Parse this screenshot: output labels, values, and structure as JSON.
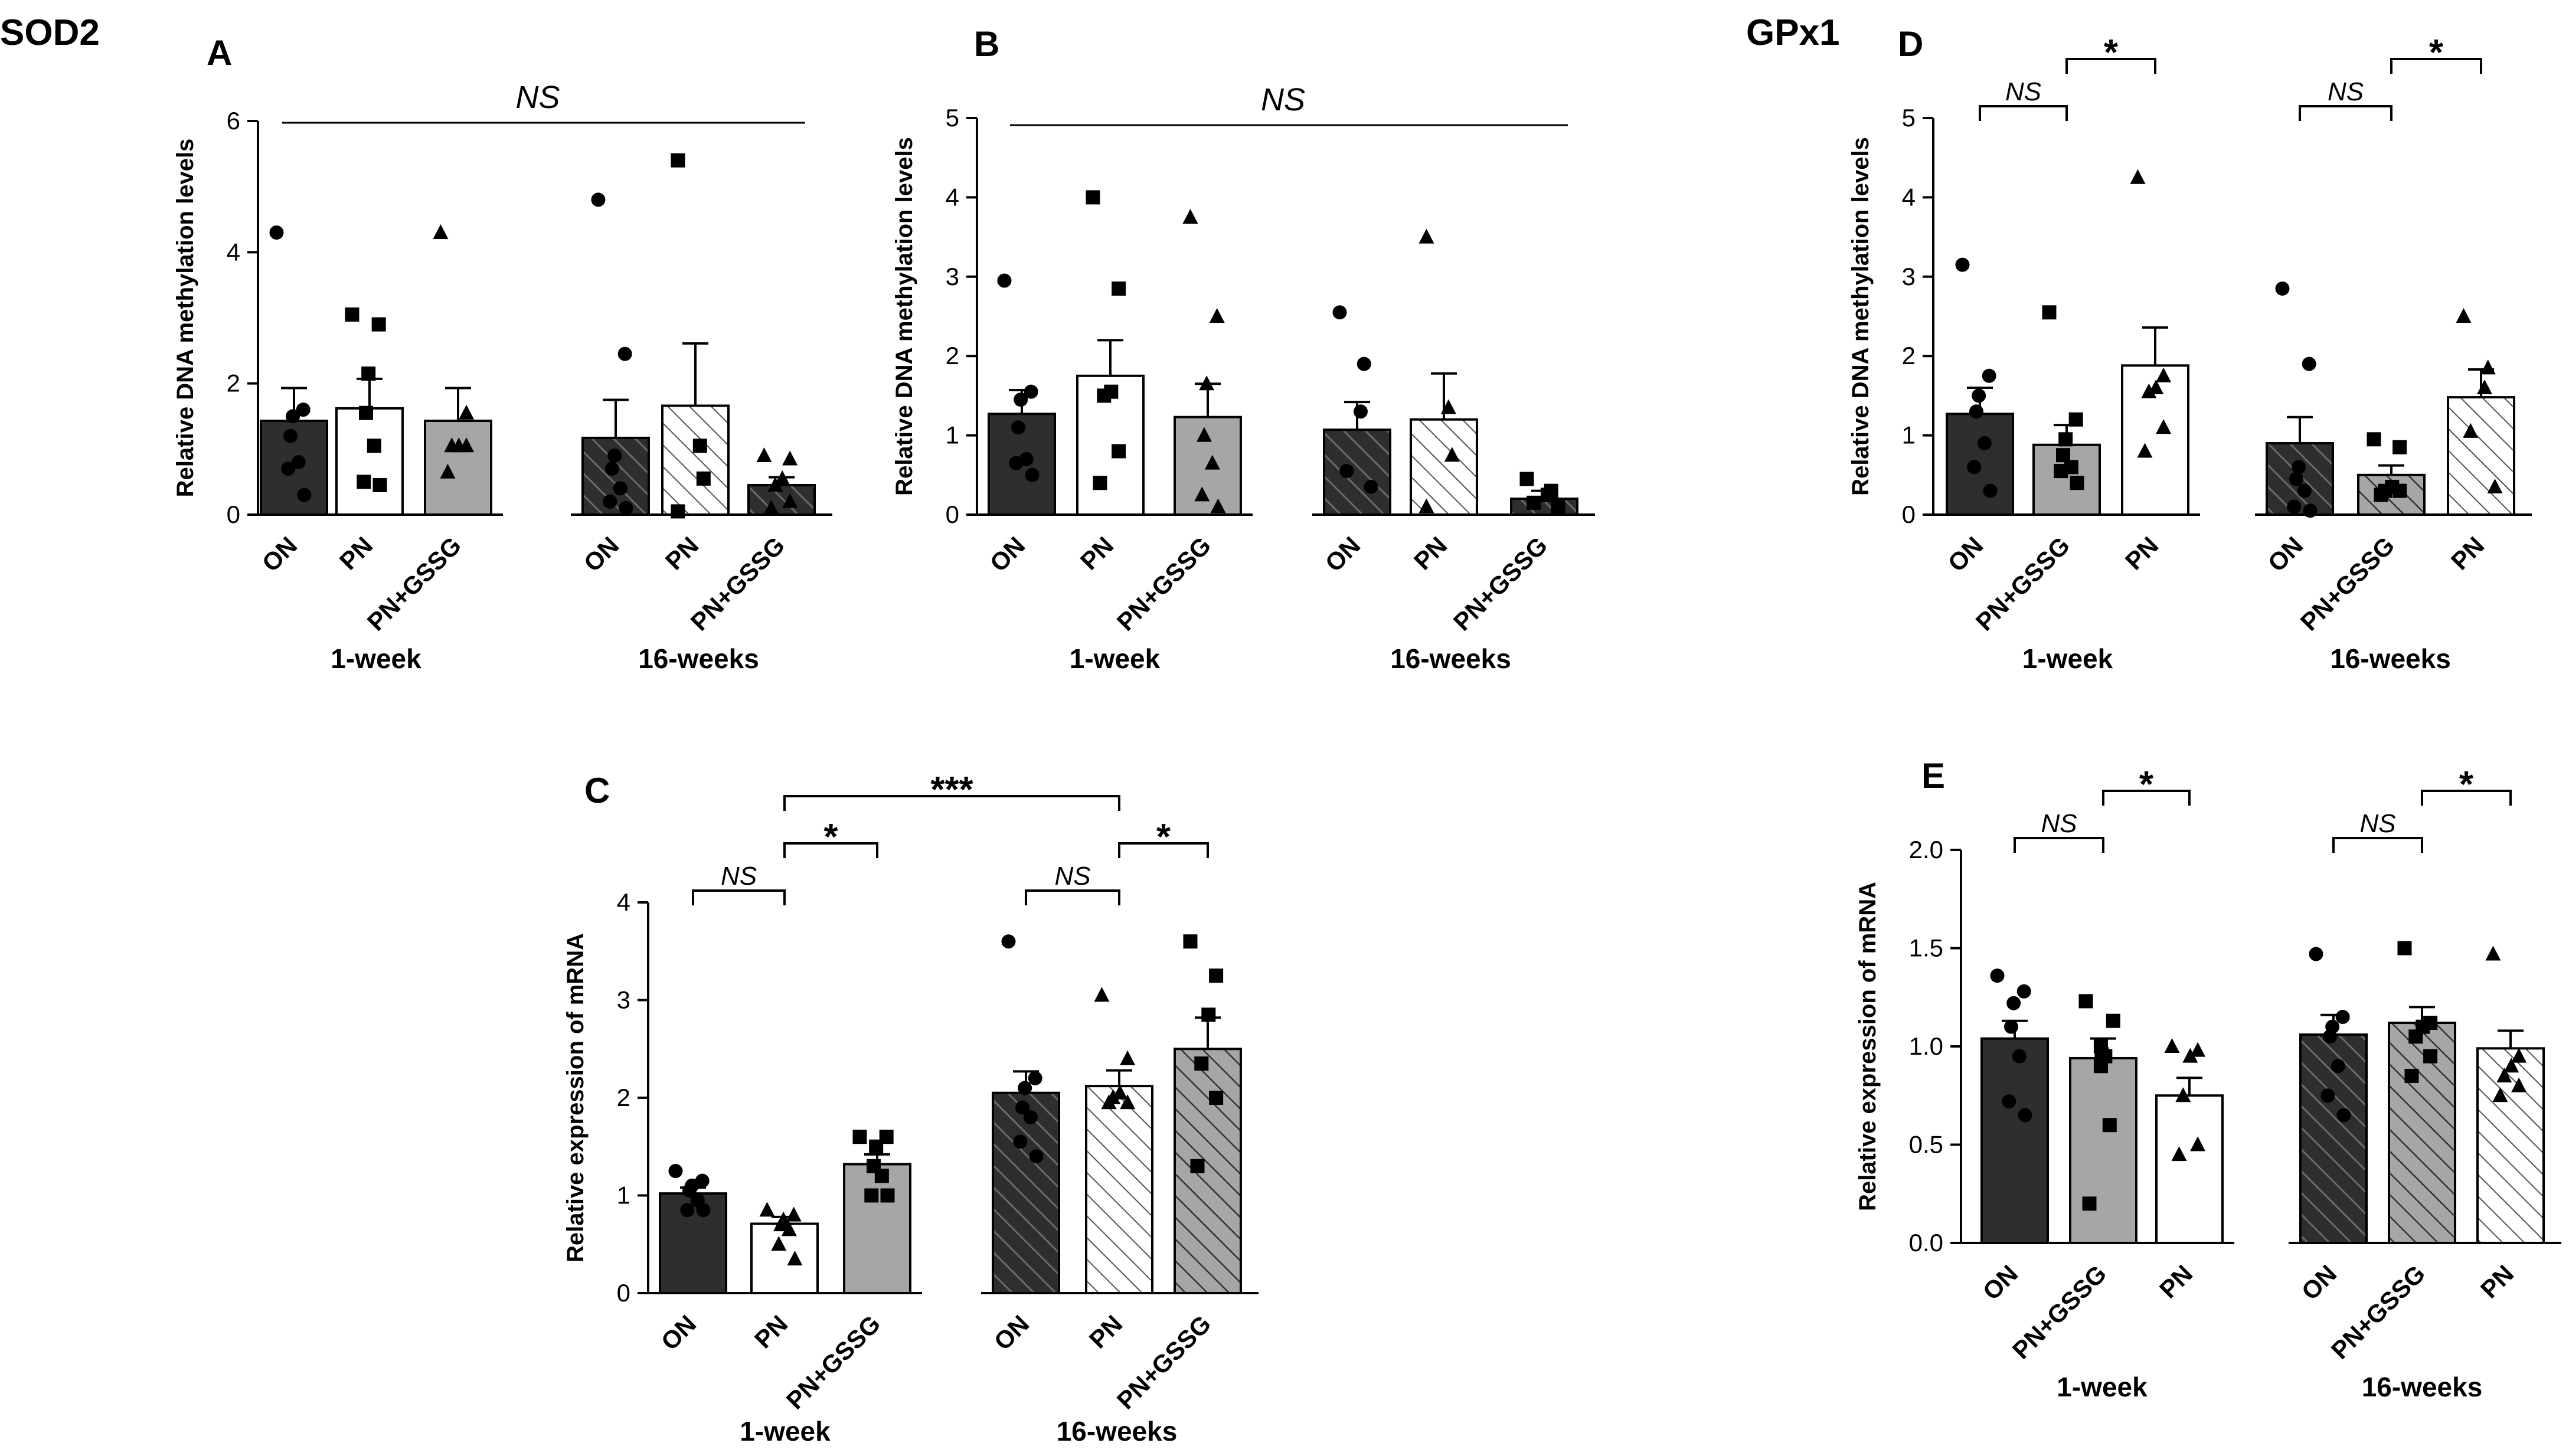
{
  "figure": {
    "gene_labels": {
      "sod2": "SOD2",
      "gpx1": "GPx1"
    },
    "group_labels": {
      "w1": "1-week",
      "w16": "16-weeks"
    }
  },
  "colors": {
    "black": "#2e2e2e",
    "gray": "#a6a6a6",
    "white": "#ffffff",
    "stroke": "#000000",
    "hatch": "#000000"
  },
  "chart_data": [
    {
      "panel": "A",
      "type": "bar",
      "title": "",
      "xlabel": "",
      "ylabel": "Relative DNA methylation levels",
      "ylim": [
        0,
        6
      ],
      "yticks": [
        0,
        2,
        4,
        6
      ],
      "groups": [
        {
          "label": "1-week",
          "bars": [
            {
              "category": "ON",
              "mean": 1.43,
              "sem": 0.5,
              "fill": "black",
              "hatch": false,
              "marker": "circle",
              "points": [
                4.3,
                1.6,
                1.5,
                1.2,
                0.8,
                0.7,
                0.3
              ]
            },
            {
              "category": "PN",
              "mean": 1.62,
              "sem": 0.45,
              "fill": "white",
              "hatch": false,
              "marker": "square",
              "points": [
                3.05,
                2.9,
                2.15,
                1.55,
                1.05,
                0.5,
                0.45
              ]
            },
            {
              "category": "PN+GSSG",
              "mean": 1.43,
              "sem": 0.5,
              "fill": "gray",
              "hatch": false,
              "marker": "triangle",
              "points": [
                4.3,
                1.55,
                1.05,
                1.05,
                1.05,
                0.65
              ]
            }
          ]
        },
        {
          "label": "16-weeks",
          "bars": [
            {
              "category": "ON",
              "mean": 1.17,
              "sem": 0.58,
              "fill": "black",
              "hatch": true,
              "marker": "circle",
              "points": [
                4.8,
                2.45,
                0.9,
                0.7,
                0.4,
                0.2,
                0.1
              ]
            },
            {
              "category": "PN",
              "mean": 1.66,
              "sem": 0.95,
              "fill": "white",
              "hatch": true,
              "marker": "square",
              "points": [
                5.4,
                1.05,
                0.55,
                0.05
              ]
            },
            {
              "category": "PN+GSSG",
              "mean": 0.45,
              "sem": 0.12,
              "fill": "black",
              "hatch": true,
              "marker": "triangle",
              "points": [
                0.9,
                0.85,
                0.55,
                0.45,
                0.2,
                0.1
              ]
            }
          ]
        }
      ],
      "annotations": [
        {
          "from": [
            0,
            0
          ],
          "to": [
            1,
            2
          ],
          "text": "NS",
          "italic": true,
          "style": "line"
        }
      ]
    },
    {
      "panel": "B",
      "type": "bar",
      "title": "",
      "xlabel": "",
      "ylabel": "Relative DNA methylation levels",
      "ylim": [
        0,
        5
      ],
      "yticks": [
        0,
        1,
        2,
        3,
        4,
        5
      ],
      "groups": [
        {
          "label": "1-week",
          "bars": [
            {
              "category": "ON",
              "mean": 1.27,
              "sem": 0.3,
              "fill": "black",
              "hatch": false,
              "marker": "circle",
              "points": [
                2.95,
                1.55,
                1.45,
                1.1,
                0.7,
                0.65,
                0.5
              ]
            },
            {
              "category": "PN",
              "mean": 1.75,
              "sem": 0.45,
              "fill": "white",
              "hatch": false,
              "marker": "square",
              "points": [
                4.0,
                2.85,
                1.55,
                1.5,
                0.8,
                0.4
              ]
            },
            {
              "category": "PN+GSSG",
              "mean": 1.23,
              "sem": 0.42,
              "fill": "gray",
              "hatch": false,
              "marker": "triangle",
              "points": [
                3.75,
                2.5,
                1.65,
                1.0,
                0.65,
                0.25,
                0.1
              ]
            }
          ]
        },
        {
          "label": "16-weeks",
          "bars": [
            {
              "category": "ON",
              "mean": 1.07,
              "sem": 0.35,
              "fill": "black",
              "hatch": true,
              "marker": "circle",
              "points": [
                2.55,
                1.9,
                1.3,
                0.55,
                0.35
              ]
            },
            {
              "category": "PN",
              "mean": 1.2,
              "sem": 0.58,
              "fill": "white",
              "hatch": true,
              "marker": "triangle",
              "points": [
                3.5,
                1.35,
                0.75,
                0.1
              ]
            },
            {
              "category": "PN+GSSG",
              "mean": 0.2,
              "sem": 0.1,
              "fill": "black",
              "hatch": true,
              "marker": "square",
              "points": [
                0.45,
                0.3,
                0.25,
                0.15,
                0.1
              ]
            }
          ]
        }
      ],
      "annotations": [
        {
          "from": [
            0,
            0
          ],
          "to": [
            1,
            2
          ],
          "text": "NS",
          "italic": true,
          "style": "line"
        }
      ]
    },
    {
      "panel": "C",
      "type": "bar",
      "title": "",
      "xlabel": "",
      "ylabel": "Relative expression of mRNA",
      "ylim": [
        0,
        4
      ],
      "yticks": [
        0,
        1,
        2,
        3,
        4
      ],
      "groups": [
        {
          "label": "1-week",
          "bars": [
            {
              "category": "ON",
              "mean": 1.02,
              "sem": 0.06,
              "fill": "black",
              "hatch": false,
              "marker": "circle",
              "points": [
                1.25,
                1.15,
                1.1,
                1.05,
                0.95,
                0.85,
                0.85
              ]
            },
            {
              "category": "PN",
              "mean": 0.71,
              "sem": 0.07,
              "fill": "white",
              "hatch": false,
              "marker": "triangle",
              "points": [
                0.85,
                0.8,
                0.75,
                0.7,
                0.65,
                0.5,
                0.35
              ]
            },
            {
              "category": "PN+GSSG",
              "mean": 1.32,
              "sem": 0.1,
              "fill": "gray",
              "hatch": false,
              "marker": "square",
              "points": [
                1.6,
                1.6,
                1.5,
                1.3,
                1.2,
                1.0,
                1.0
              ]
            }
          ]
        },
        {
          "label": "16-weeks",
          "bars": [
            {
              "category": "ON",
              "mean": 2.05,
              "sem": 0.22,
              "fill": "black",
              "hatch": true,
              "marker": "circle",
              "points": [
                3.6,
                2.2,
                2.1,
                1.9,
                1.8,
                1.55,
                1.4
              ]
            },
            {
              "category": "PN",
              "mean": 2.12,
              "sem": 0.16,
              "fill": "white",
              "hatch": true,
              "marker": "triangle",
              "points": [
                3.05,
                2.4,
                2.05,
                2.0,
                1.95,
                1.95
              ]
            },
            {
              "category": "PN+GSSG",
              "mean": 2.5,
              "sem": 0.32,
              "fill": "gray",
              "hatch": true,
              "marker": "square",
              "points": [
                3.6,
                3.25,
                2.85,
                2.35,
                2.0,
                1.3
              ]
            }
          ]
        }
      ],
      "annotations": [
        {
          "from": [
            0,
            0
          ],
          "to": [
            0,
            1
          ],
          "text": "NS",
          "italic": true,
          "style": "bracket",
          "level": 0
        },
        {
          "from": [
            0,
            1
          ],
          "to": [
            0,
            2
          ],
          "text": "*",
          "italic": false,
          "style": "bracket",
          "level": 1
        },
        {
          "from": [
            1,
            0
          ],
          "to": [
            1,
            1
          ],
          "text": "NS",
          "italic": true,
          "style": "bracket",
          "level": 0
        },
        {
          "from": [
            1,
            1
          ],
          "to": [
            1,
            2
          ],
          "text": "*",
          "italic": false,
          "style": "bracket",
          "level": 1
        },
        {
          "from": [
            0,
            1
          ],
          "to": [
            1,
            1
          ],
          "text": "***",
          "italic": false,
          "style": "bracket",
          "level": 2
        }
      ]
    },
    {
      "panel": "D",
      "type": "bar",
      "title": "",
      "xlabel": "",
      "ylabel": "Relative DNA methylation levels",
      "ylim": [
        0,
        5
      ],
      "yticks": [
        0,
        1,
        2,
        3,
        4,
        5
      ],
      "groups": [
        {
          "label": "1-week",
          "bars": [
            {
              "category": "ON",
              "mean": 1.27,
              "sem": 0.33,
              "fill": "black",
              "hatch": false,
              "marker": "circle",
              "points": [
                3.15,
                1.75,
                1.5,
                1.3,
                0.9,
                0.6,
                0.3
              ]
            },
            {
              "category": "PN+GSSG",
              "mean": 0.88,
              "sem": 0.25,
              "fill": "gray",
              "hatch": false,
              "marker": "square",
              "points": [
                2.55,
                1.2,
                0.95,
                0.75,
                0.6,
                0.55,
                0.4
              ]
            },
            {
              "category": "PN",
              "mean": 1.88,
              "sem": 0.48,
              "fill": "white",
              "hatch": false,
              "marker": "triangle",
              "points": [
                4.25,
                1.75,
                1.6,
                1.55,
                1.1,
                0.8
              ]
            }
          ]
        },
        {
          "label": "16-weeks",
          "bars": [
            {
              "category": "ON",
              "mean": 0.9,
              "sem": 0.33,
              "fill": "black",
              "hatch": true,
              "marker": "circle",
              "points": [
                2.85,
                1.9,
                0.6,
                0.45,
                0.3,
                0.1,
                0.05
              ]
            },
            {
              "category": "PN+GSSG",
              "mean": 0.5,
              "sem": 0.12,
              "fill": "gray",
              "hatch": true,
              "marker": "square",
              "points": [
                0.95,
                0.85,
                0.35,
                0.3,
                0.3,
                0.25
              ]
            },
            {
              "category": "PN",
              "mean": 1.48,
              "sem": 0.35,
              "fill": "white",
              "hatch": true,
              "marker": "triangle",
              "points": [
                2.5,
                1.85,
                1.6,
                1.05,
                0.35
              ]
            }
          ]
        }
      ],
      "annotations": [
        {
          "from": [
            0,
            0
          ],
          "to": [
            0,
            1
          ],
          "text": "NS",
          "italic": true,
          "style": "bracket",
          "level": 0
        },
        {
          "from": [
            0,
            1
          ],
          "to": [
            0,
            2
          ],
          "text": "*",
          "italic": false,
          "style": "bracket",
          "level": 1
        },
        {
          "from": [
            1,
            0
          ],
          "to": [
            1,
            1
          ],
          "text": "NS",
          "italic": true,
          "style": "bracket",
          "level": 0
        },
        {
          "from": [
            1,
            1
          ],
          "to": [
            1,
            2
          ],
          "text": "*",
          "italic": false,
          "style": "bracket",
          "level": 1
        }
      ]
    },
    {
      "panel": "E",
      "type": "bar",
      "title": "",
      "xlabel": "",
      "ylabel": "Relative expression of mRNA",
      "ylim": [
        0,
        2.0
      ],
      "yticks": [
        "0.0",
        "0.5",
        "1.0",
        "1.5",
        "2.0"
      ],
      "groups": [
        {
          "label": "1-week",
          "bars": [
            {
              "category": "ON",
              "mean": 1.04,
              "sem": 0.09,
              "fill": "black",
              "hatch": false,
              "marker": "circle",
              "points": [
                1.36,
                1.28,
                1.22,
                1.1,
                0.95,
                0.72,
                0.65
              ]
            },
            {
              "category": "PN+GSSG",
              "mean": 0.94,
              "sem": 0.1,
              "fill": "gray",
              "hatch": false,
              "marker": "square",
              "points": [
                1.23,
                1.13,
                1.0,
                0.96,
                0.95,
                0.9,
                0.6,
                0.2
              ]
            },
            {
              "category": "PN",
              "mean": 0.75,
              "sem": 0.09,
              "fill": "white",
              "hatch": false,
              "marker": "triangle",
              "points": [
                1.0,
                0.98,
                0.95,
                0.75,
                0.5,
                0.45
              ]
            }
          ]
        },
        {
          "label": "16-weeks",
          "bars": [
            {
              "category": "ON",
              "mean": 1.06,
              "sem": 0.1,
              "fill": "black",
              "hatch": true,
              "marker": "circle",
              "points": [
                1.47,
                1.15,
                1.1,
                1.05,
                0.9,
                0.75,
                0.65
              ]
            },
            {
              "category": "PN+GSSG",
              "mean": 1.12,
              "sem": 0.08,
              "fill": "gray",
              "hatch": true,
              "marker": "square",
              "points": [
                1.5,
                1.12,
                1.1,
                1.05,
                0.95,
                0.85
              ]
            },
            {
              "category": "PN",
              "mean": 0.99,
              "sem": 0.09,
              "fill": "white",
              "hatch": true,
              "marker": "triangle",
              "points": [
                1.47,
                0.95,
                0.9,
                0.85,
                0.8,
                0.75
              ]
            }
          ]
        }
      ],
      "annotations": [
        {
          "from": [
            0,
            0
          ],
          "to": [
            0,
            1
          ],
          "text": "NS",
          "italic": true,
          "style": "bracket",
          "level": 0
        },
        {
          "from": [
            0,
            1
          ],
          "to": [
            0,
            2
          ],
          "text": "*",
          "italic": false,
          "style": "bracket",
          "level": 1
        },
        {
          "from": [
            1,
            0
          ],
          "to": [
            1,
            1
          ],
          "text": "NS",
          "italic": true,
          "style": "bracket",
          "level": 0
        },
        {
          "from": [
            1,
            1
          ],
          "to": [
            1,
            2
          ],
          "text": "*",
          "italic": false,
          "style": "bracket",
          "level": 1
        }
      ]
    }
  ]
}
